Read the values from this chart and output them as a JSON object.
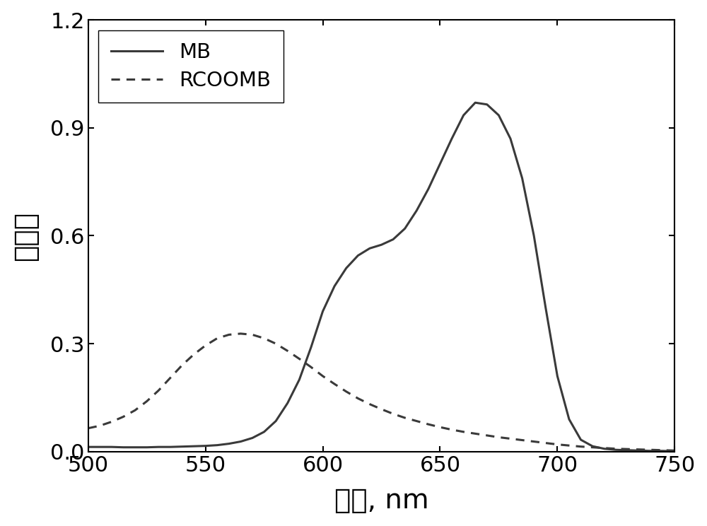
{
  "title": "",
  "xlabel": "波长, nm",
  "ylabel": "吸光度",
  "xlim": [
    500,
    750
  ],
  "ylim": [
    0,
    1.2
  ],
  "xticks": [
    500,
    550,
    600,
    650,
    700,
    750
  ],
  "yticks": [
    0.0,
    0.3,
    0.6,
    0.9,
    1.2
  ],
  "legend_labels": [
    "MB",
    "RCOOMB"
  ],
  "line_color": "#3a3a3a",
  "background_color": "#ffffff",
  "MB_x": [
    500,
    505,
    510,
    515,
    520,
    525,
    530,
    535,
    540,
    545,
    550,
    555,
    560,
    565,
    570,
    575,
    580,
    585,
    590,
    595,
    600,
    605,
    610,
    615,
    620,
    625,
    630,
    635,
    640,
    645,
    650,
    655,
    660,
    665,
    670,
    675,
    680,
    685,
    690,
    695,
    700,
    705,
    710,
    715,
    720,
    725,
    730,
    735,
    740,
    745,
    750
  ],
  "MB_y": [
    0.013,
    0.013,
    0.013,
    0.012,
    0.012,
    0.012,
    0.013,
    0.013,
    0.014,
    0.015,
    0.016,
    0.018,
    0.022,
    0.028,
    0.038,
    0.055,
    0.085,
    0.135,
    0.2,
    0.29,
    0.39,
    0.46,
    0.51,
    0.545,
    0.565,
    0.575,
    0.59,
    0.62,
    0.67,
    0.73,
    0.8,
    0.87,
    0.935,
    0.97,
    0.965,
    0.935,
    0.87,
    0.76,
    0.6,
    0.4,
    0.21,
    0.09,
    0.033,
    0.015,
    0.008,
    0.005,
    0.004,
    0.003,
    0.002,
    0.002,
    0.001
  ],
  "RCOOMB_x": [
    500,
    505,
    510,
    515,
    520,
    525,
    530,
    535,
    540,
    545,
    550,
    555,
    560,
    565,
    570,
    575,
    580,
    585,
    590,
    595,
    600,
    605,
    610,
    615,
    620,
    625,
    630,
    635,
    640,
    645,
    650,
    655,
    660,
    665,
    670,
    675,
    680,
    685,
    690,
    695,
    700,
    705,
    710,
    715,
    720,
    725,
    730,
    735,
    740,
    745,
    750
  ],
  "RCOOMB_y": [
    0.065,
    0.072,
    0.083,
    0.097,
    0.115,
    0.14,
    0.17,
    0.205,
    0.24,
    0.27,
    0.295,
    0.315,
    0.325,
    0.328,
    0.325,
    0.315,
    0.3,
    0.28,
    0.258,
    0.235,
    0.21,
    0.188,
    0.167,
    0.148,
    0.132,
    0.118,
    0.105,
    0.094,
    0.085,
    0.076,
    0.068,
    0.061,
    0.055,
    0.05,
    0.045,
    0.04,
    0.036,
    0.032,
    0.028,
    0.024,
    0.02,
    0.017,
    0.014,
    0.012,
    0.01,
    0.008,
    0.007,
    0.006,
    0.005,
    0.004,
    0.003
  ],
  "xlabel_fontsize": 28,
  "ylabel_fontsize": 28,
  "tick_fontsize": 22,
  "legend_fontsize": 21,
  "linewidth_solid": 2.2,
  "linewidth_dashed": 2.2
}
